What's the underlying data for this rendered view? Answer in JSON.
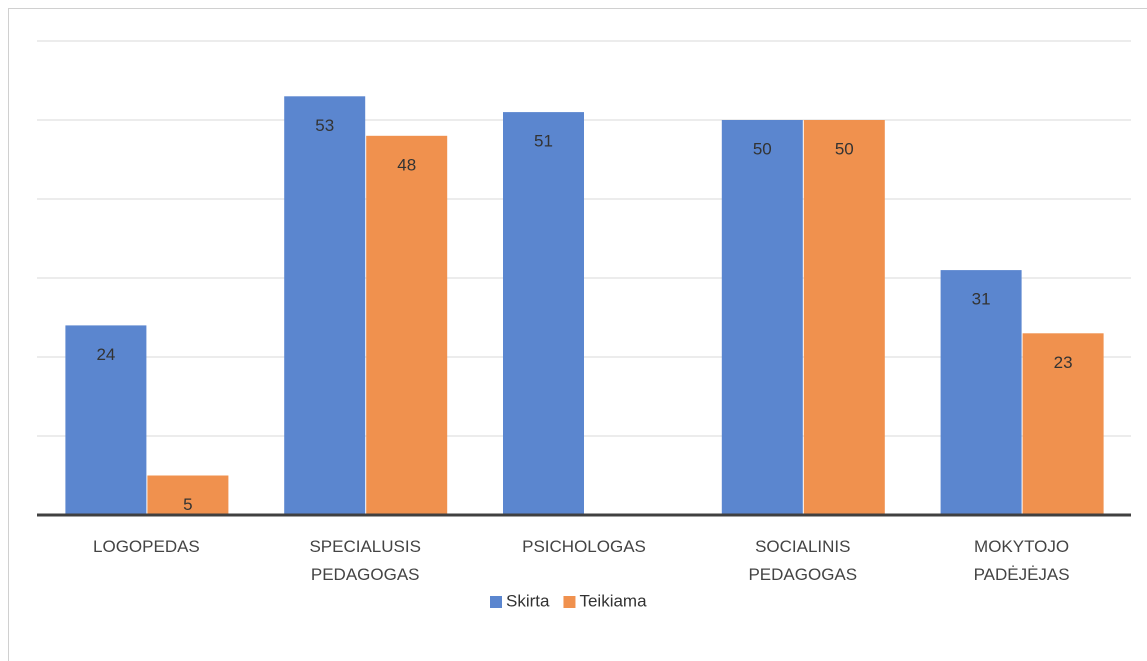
{
  "chart_data": {
    "type": "bar",
    "categories": [
      "LOGOPEDAS",
      "SPECIALUSIS\nPEDAGOGAS",
      "PSICHOLOGAS",
      "SOCIALINIS\nPEDAGOGAS",
      "MOKYTOJO\nPADĖJĖJAS"
    ],
    "series": [
      {
        "name": "Skirta",
        "color": "#5b86cf",
        "values": [
          24,
          53,
          51,
          50,
          31
        ]
      },
      {
        "name": "Teikiama",
        "color": "#f0914e",
        "values": [
          5,
          48,
          null,
          50,
          23
        ]
      }
    ],
    "ylim": [
      0,
      60
    ],
    "yticks": [
      0,
      10,
      20,
      30,
      40,
      50,
      60
    ],
    "grid": true,
    "legend": "bottom"
  }
}
